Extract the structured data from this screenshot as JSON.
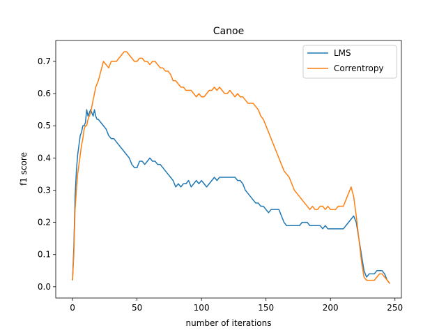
{
  "chart_data": {
    "type": "line",
    "title": "Canoe",
    "xlabel": "number of iterations",
    "ylabel": "f1 score",
    "xlim": [
      -13,
      255
    ],
    "ylim": [
      -0.035,
      0.765
    ],
    "xticks": [
      0,
      50,
      100,
      150,
      200,
      250
    ],
    "yticks": [
      0.0,
      0.1,
      0.2,
      0.3,
      0.4,
      0.5,
      0.6,
      0.7
    ],
    "grid": false,
    "legend": "top-right",
    "series": [
      {
        "name": "LMS",
        "color": "#1f77b4",
        "x": [
          0,
          1,
          2,
          3,
          4,
          5,
          6,
          7,
          8,
          9,
          10,
          11,
          12,
          13,
          14,
          15,
          16,
          17,
          18,
          19,
          20,
          22,
          24,
          26,
          28,
          30,
          32,
          34,
          36,
          38,
          40,
          42,
          44,
          46,
          48,
          50,
          52,
          54,
          56,
          58,
          60,
          62,
          64,
          66,
          68,
          70,
          72,
          74,
          76,
          78,
          80,
          82,
          84,
          86,
          88,
          90,
          92,
          94,
          96,
          98,
          100,
          102,
          104,
          106,
          108,
          110,
          112,
          114,
          116,
          118,
          120,
          122,
          124,
          126,
          128,
          130,
          132,
          134,
          136,
          138,
          140,
          142,
          144,
          146,
          148,
          150,
          152,
          154,
          156,
          158,
          160,
          162,
          164,
          166,
          168,
          170,
          172,
          174,
          176,
          178,
          180,
          182,
          184,
          186,
          188,
          190,
          192,
          194,
          196,
          198,
          200,
          202,
          204,
          206,
          208,
          210,
          212,
          214,
          216,
          218,
          220,
          222,
          224,
          226,
          228,
          230,
          232,
          234,
          236,
          238,
          240,
          242,
          244,
          246
        ],
        "y": [
          0.02,
          0.12,
          0.28,
          0.36,
          0.41,
          0.44,
          0.47,
          0.48,
          0.5,
          0.5,
          0.51,
          0.55,
          0.53,
          0.54,
          0.55,
          0.54,
          0.53,
          0.55,
          0.53,
          0.52,
          0.52,
          0.51,
          0.5,
          0.49,
          0.47,
          0.46,
          0.46,
          0.45,
          0.44,
          0.43,
          0.42,
          0.41,
          0.4,
          0.38,
          0.37,
          0.37,
          0.39,
          0.39,
          0.38,
          0.39,
          0.4,
          0.39,
          0.39,
          0.38,
          0.38,
          0.37,
          0.36,
          0.35,
          0.34,
          0.33,
          0.31,
          0.32,
          0.31,
          0.32,
          0.32,
          0.33,
          0.31,
          0.32,
          0.33,
          0.32,
          0.33,
          0.32,
          0.31,
          0.32,
          0.33,
          0.34,
          0.33,
          0.34,
          0.34,
          0.34,
          0.34,
          0.34,
          0.34,
          0.34,
          0.33,
          0.33,
          0.32,
          0.3,
          0.29,
          0.28,
          0.27,
          0.26,
          0.26,
          0.25,
          0.25,
          0.24,
          0.23,
          0.24,
          0.24,
          0.24,
          0.24,
          0.22,
          0.2,
          0.19,
          0.19,
          0.19,
          0.19,
          0.19,
          0.19,
          0.2,
          0.2,
          0.2,
          0.19,
          0.19,
          0.19,
          0.19,
          0.19,
          0.18,
          0.19,
          0.18,
          0.18,
          0.18,
          0.18,
          0.18,
          0.18,
          0.18,
          0.19,
          0.2,
          0.21,
          0.22,
          0.2,
          0.15,
          0.1,
          0.05,
          0.03,
          0.04,
          0.04,
          0.04,
          0.05,
          0.05,
          0.05,
          0.04,
          0.02,
          0.01
        ]
      },
      {
        "name": "Correntropy",
        "color": "#ff7f0e",
        "x": [
          0,
          1,
          2,
          3,
          4,
          5,
          6,
          7,
          8,
          9,
          10,
          11,
          12,
          13,
          14,
          15,
          16,
          17,
          18,
          19,
          20,
          22,
          24,
          26,
          28,
          30,
          32,
          34,
          36,
          38,
          40,
          42,
          44,
          46,
          48,
          50,
          52,
          54,
          56,
          58,
          60,
          62,
          64,
          66,
          68,
          70,
          72,
          74,
          76,
          78,
          80,
          82,
          84,
          86,
          88,
          90,
          92,
          94,
          96,
          98,
          100,
          102,
          104,
          106,
          108,
          110,
          112,
          114,
          116,
          118,
          120,
          122,
          124,
          126,
          128,
          130,
          132,
          134,
          136,
          138,
          140,
          142,
          144,
          146,
          148,
          150,
          152,
          154,
          156,
          158,
          160,
          162,
          164,
          166,
          168,
          170,
          172,
          174,
          176,
          178,
          180,
          182,
          184,
          186,
          188,
          190,
          192,
          194,
          196,
          198,
          200,
          202,
          204,
          206,
          208,
          210,
          212,
          214,
          216,
          218,
          220,
          222,
          224,
          226,
          228,
          230,
          232,
          234,
          236,
          238,
          240,
          242,
          244,
          246
        ],
        "y": [
          0.02,
          0.1,
          0.24,
          0.3,
          0.35,
          0.38,
          0.41,
          0.44,
          0.46,
          0.49,
          0.5,
          0.5,
          0.52,
          0.53,
          0.54,
          0.56,
          0.58,
          0.6,
          0.62,
          0.63,
          0.64,
          0.67,
          0.7,
          0.69,
          0.68,
          0.7,
          0.7,
          0.7,
          0.71,
          0.72,
          0.73,
          0.73,
          0.72,
          0.71,
          0.7,
          0.7,
          0.71,
          0.71,
          0.7,
          0.7,
          0.69,
          0.7,
          0.7,
          0.69,
          0.68,
          0.68,
          0.67,
          0.67,
          0.66,
          0.64,
          0.64,
          0.63,
          0.62,
          0.62,
          0.61,
          0.61,
          0.61,
          0.6,
          0.59,
          0.6,
          0.59,
          0.59,
          0.6,
          0.61,
          0.61,
          0.62,
          0.61,
          0.62,
          0.61,
          0.6,
          0.6,
          0.61,
          0.6,
          0.59,
          0.6,
          0.59,
          0.59,
          0.58,
          0.57,
          0.57,
          0.57,
          0.56,
          0.55,
          0.53,
          0.52,
          0.5,
          0.48,
          0.46,
          0.44,
          0.42,
          0.4,
          0.38,
          0.36,
          0.35,
          0.34,
          0.32,
          0.3,
          0.29,
          0.28,
          0.27,
          0.26,
          0.25,
          0.24,
          0.25,
          0.24,
          0.24,
          0.25,
          0.25,
          0.24,
          0.25,
          0.24,
          0.24,
          0.24,
          0.25,
          0.25,
          0.25,
          0.27,
          0.29,
          0.31,
          0.28,
          0.22,
          0.15,
          0.08,
          0.03,
          0.02,
          0.02,
          0.02,
          0.02,
          0.03,
          0.04,
          0.04,
          0.03,
          0.02,
          0.01
        ]
      }
    ]
  }
}
